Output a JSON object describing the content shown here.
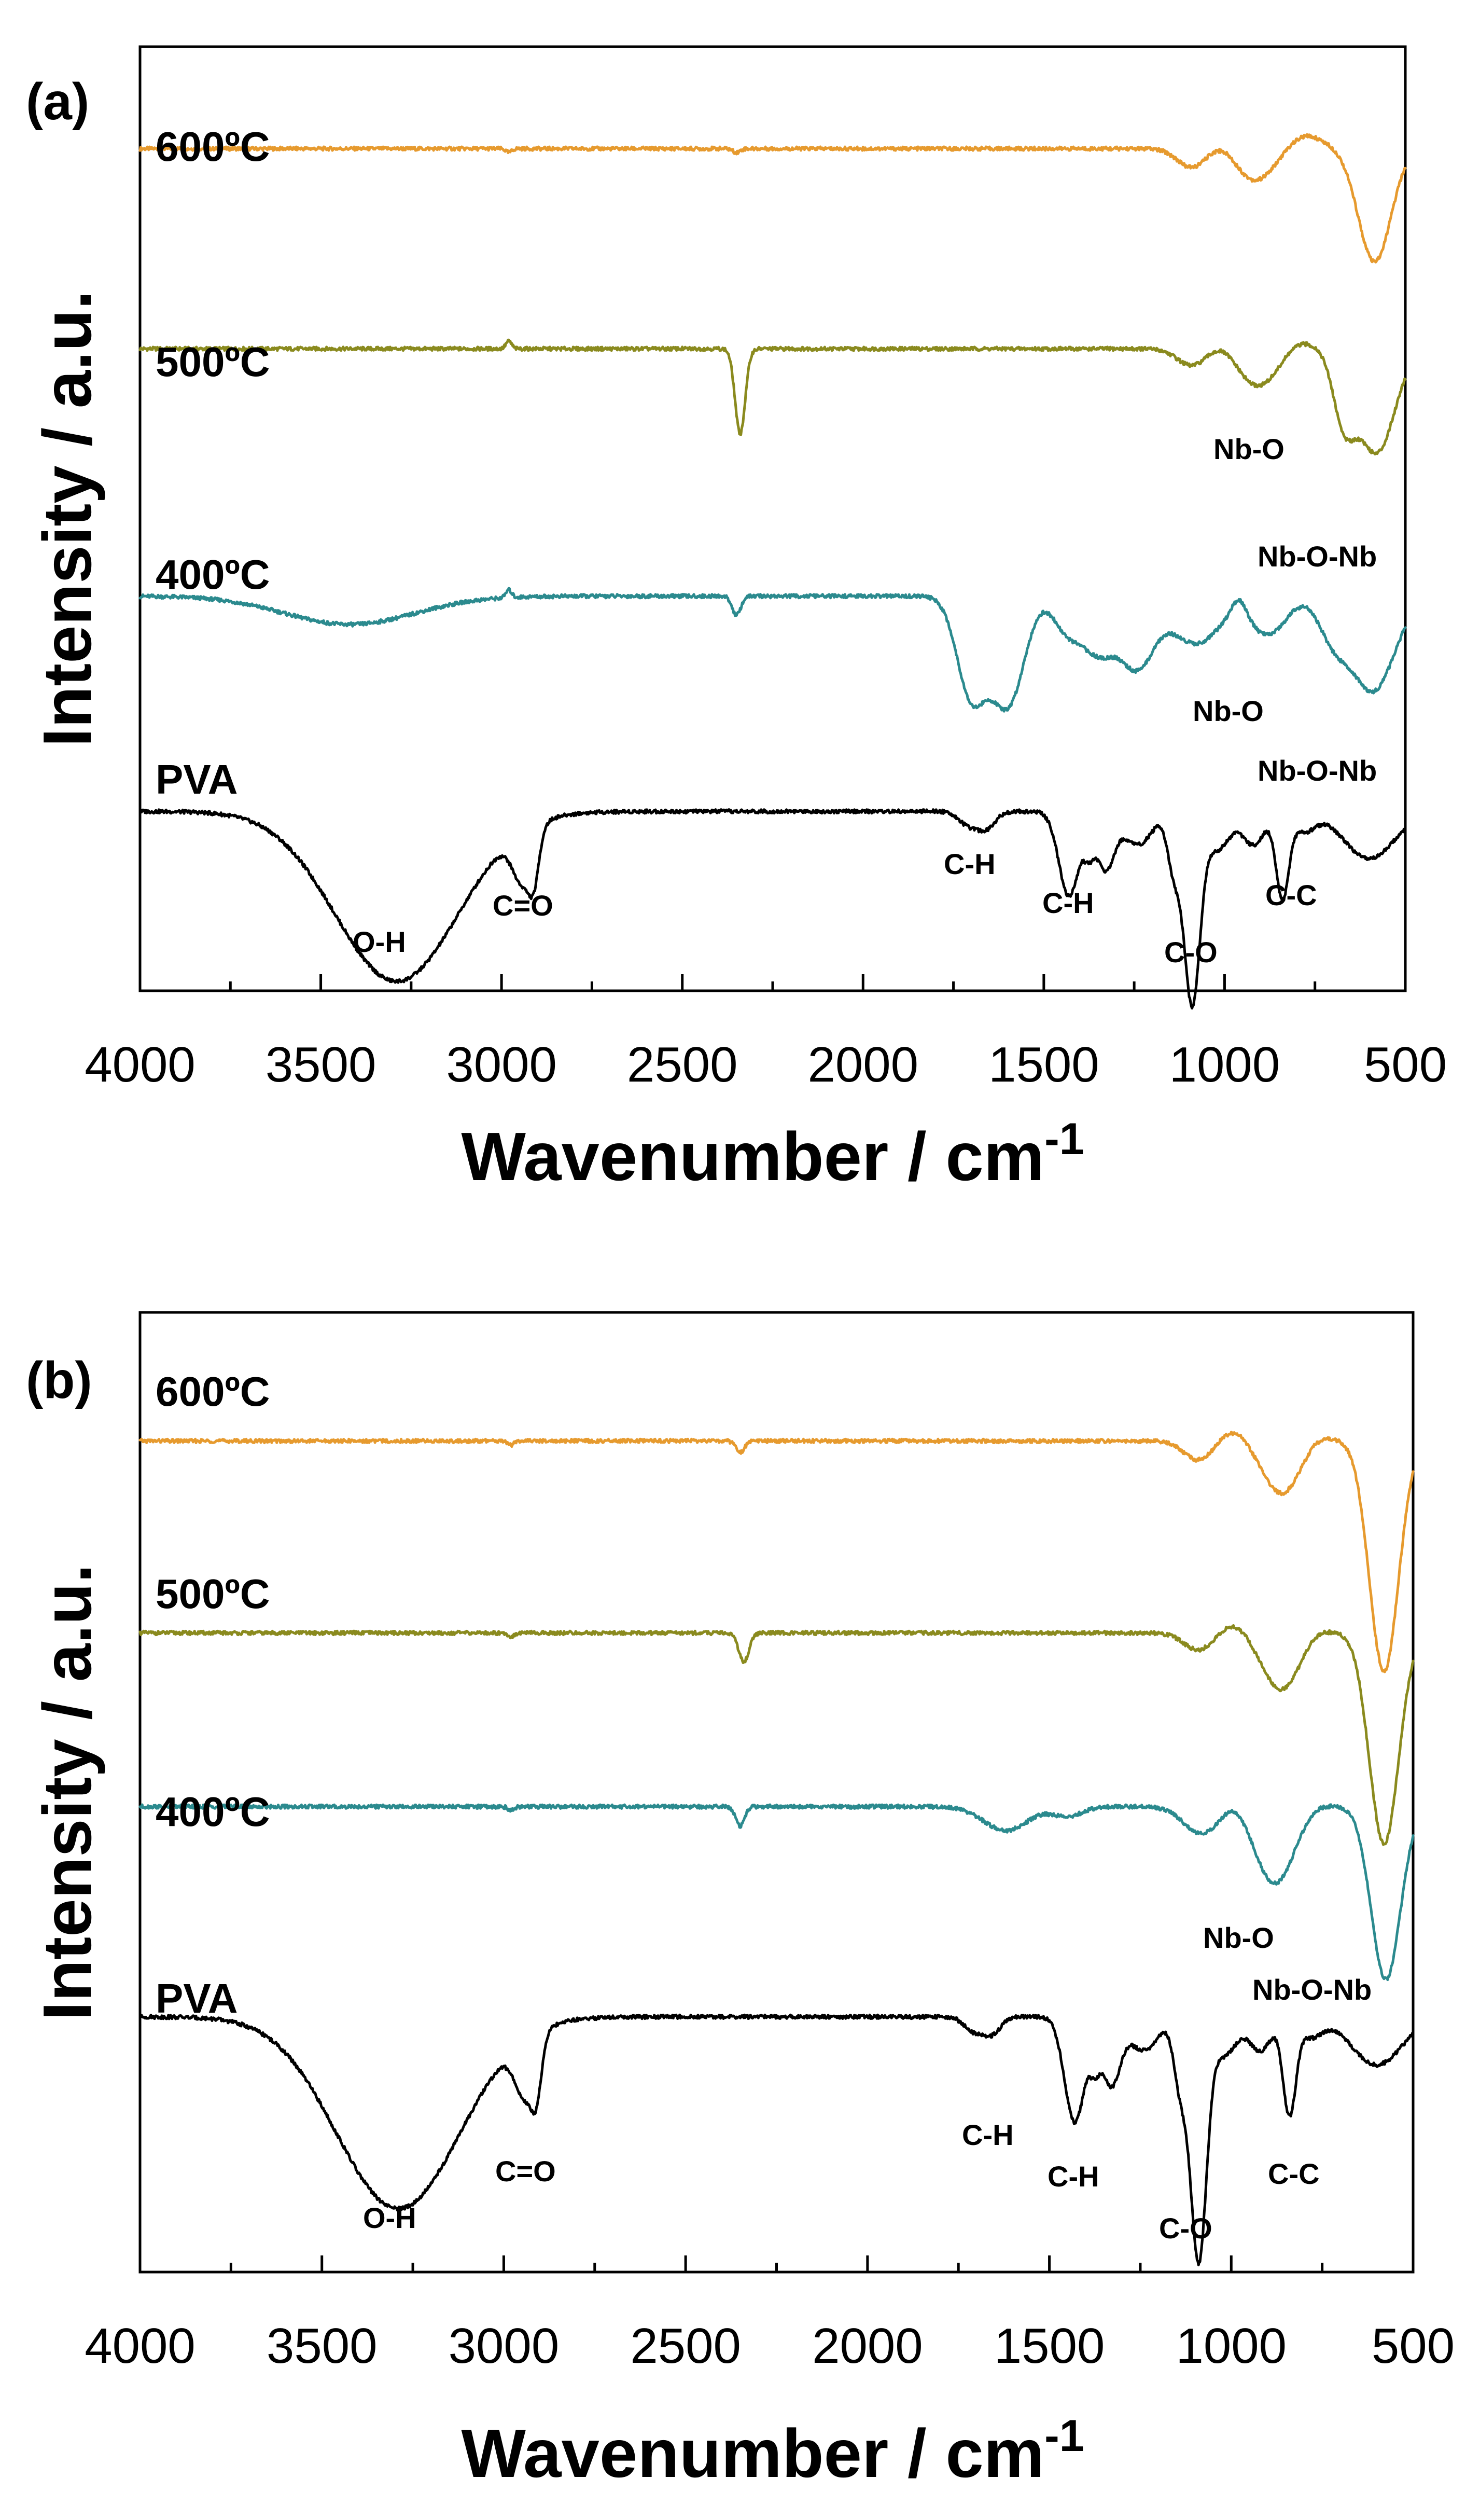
{
  "chart_data": [
    {
      "type": "line",
      "panel": "(a)",
      "xlabel": "Wavenumber / cm",
      "xlabel_sup": "-1",
      "ylabel": "Intensity / a.u.",
      "xlim": [
        4000,
        500
      ],
      "xticks": [
        4000,
        3500,
        3000,
        2500,
        2000,
        1500,
        1000,
        500
      ],
      "ylim": [
        0,
        1
      ],
      "series": [
        {
          "name": "600ºC",
          "color": "#e69a2e",
          "baseline": 0.892,
          "features": [
            [
              2980,
              8,
              0.004
            ],
            [
              2350,
              10,
              0.004
            ],
            [
              1090,
              40,
              0.02
            ],
            [
              1000,
              40,
              -0.012
            ],
            [
              920,
              60,
              0.035
            ],
            [
              780,
              50,
              -0.015
            ],
            [
              585,
              45,
              0.12
            ]
          ]
        },
        {
          "name": "500ºC",
          "color": "#8a8a1e",
          "baseline": 0.68,
          "features": [
            [
              2980,
              8,
              -0.008
            ],
            [
              2340,
              14,
              0.09
            ],
            [
              1090,
              40,
              0.018
            ],
            [
              1000,
              40,
              -0.01
            ],
            [
              910,
              60,
              0.04
            ],
            [
              800,
              40,
              -0.01
            ],
            [
              670,
              30,
              0.07
            ],
            [
              580,
              50,
              0.11
            ]
          ]
        },
        {
          "name": "400ºC",
          "color": "#2b8a8e",
          "baseline": 0.418,
          "features": [
            [
              3420,
              180,
              0.03
            ],
            [
              2980,
              8,
              -0.008
            ],
            [
              2350,
              12,
              0.02
            ],
            [
              1700,
              40,
              0.105
            ],
            [
              1600,
              45,
              0.115
            ],
            [
              1440,
              35,
              0.03
            ],
            [
              1350,
              50,
              0.06
            ],
            [
              1240,
              45,
              0.07
            ],
            [
              1080,
              70,
              0.05
            ],
            [
              960,
              20,
              -0.018
            ],
            [
              880,
              50,
              0.04
            ],
            [
              700,
              40,
              0.04
            ],
            [
              590,
              60,
              0.1
            ]
          ]
        },
        {
          "name": "PVA",
          "color": "#000000",
          "baseline": 0.19,
          "features": [
            [
              3290,
              170,
              0.18
            ],
            [
              2940,
              28,
              0.055
            ],
            [
              2910,
              14,
              0.04
            ],
            [
              1710,
              25,
              0.014
            ],
            [
              1660,
              25,
              0.018
            ],
            [
              1430,
              28,
              0.09
            ],
            [
              1375,
              14,
              0.03
            ],
            [
              1330,
              25,
              0.06
            ],
            [
              1240,
              40,
              0.035
            ],
            [
              1090,
              22,
              0.2
            ],
            [
              1140,
              18,
              0.06
            ],
            [
              1020,
              35,
              0.04
            ],
            [
              920,
              30,
              0.035
            ],
            [
              840,
              18,
              0.09
            ],
            [
              780,
              30,
              0.02
            ],
            [
              600,
              70,
              0.05
            ]
          ]
        }
      ],
      "series_labels": [
        "600ºC",
        "500ºC",
        "400ºC",
        "PVA"
      ],
      "annotations": [
        "Nb-O",
        "Nb-O-Nb",
        "Nb-O",
        "Nb-O-Nb",
        "O-H",
        "C=O",
        "C-H",
        "C-H",
        "C-O",
        "C-C"
      ]
    },
    {
      "type": "line",
      "panel": "(b)",
      "xlabel": "Wavenumber / cm",
      "xlabel_sup": "-1",
      "ylabel": "Intensity / a.u.",
      "xlim": [
        4000,
        500
      ],
      "xticks": [
        4000,
        3500,
        3000,
        2500,
        2000,
        1500,
        1000,
        500
      ],
      "ylim": [
        0,
        1
      ],
      "series": [
        {
          "name": "600ºC",
          "color": "#e69a2e",
          "baseline": 0.866,
          "features": [
            [
              2980,
              8,
              0.004
            ],
            [
              2350,
              12,
              0.012
            ],
            [
              1090,
              40,
              0.02
            ],
            [
              990,
              40,
              -0.012
            ],
            [
              860,
              55,
              0.055
            ],
            [
              770,
              40,
              -0.01
            ],
            [
              580,
              40,
              0.24
            ]
          ]
        },
        {
          "name": "500ºC",
          "color": "#8a8a1e",
          "baseline": 0.666,
          "features": [
            [
              2980,
              8,
              0.004
            ],
            [
              2340,
              14,
              0.03
            ],
            [
              1090,
              40,
              0.018
            ],
            [
              990,
              40,
              -0.01
            ],
            [
              860,
              55,
              0.06
            ],
            [
              780,
              40,
              -0.01
            ],
            [
              580,
              40,
              0.22
            ]
          ]
        },
        {
          "name": "400ºC",
          "color": "#2b8a8e",
          "baseline": 0.485,
          "features": [
            [
              2980,
              8,
              0.004
            ],
            [
              2350,
              12,
              0.02
            ],
            [
              1620,
              60,
              0.025
            ],
            [
              1450,
              40,
              0.01
            ],
            [
              1080,
              50,
              0.028
            ],
            [
              990,
              35,
              -0.01
            ],
            [
              880,
              55,
              0.08
            ],
            [
              780,
              40,
              -0.005
            ],
            [
              575,
              40,
              0.18
            ]
          ]
        },
        {
          "name": "PVA",
          "color": "#000000",
          "baseline": 0.266,
          "features": [
            [
              3290,
              170,
              0.2
            ],
            [
              2940,
              28,
              0.06
            ],
            [
              2910,
              14,
              0.045
            ],
            [
              1710,
              25,
              0.014
            ],
            [
              1660,
              25,
              0.018
            ],
            [
              1430,
              28,
              0.11
            ],
            [
              1375,
              14,
              0.035
            ],
            [
              1330,
              25,
              0.07
            ],
            [
              1240,
              40,
              0.035
            ],
            [
              1090,
              22,
              0.25
            ],
            [
              1140,
              18,
              0.07
            ],
            [
              1020,
              35,
              0.04
            ],
            [
              920,
              30,
              0.035
            ],
            [
              840,
              18,
              0.1
            ],
            [
              780,
              30,
              0.02
            ],
            [
              600,
              70,
              0.05
            ]
          ]
        }
      ],
      "series_labels": [
        "600ºC",
        "500ºC",
        "400ºC",
        "PVA"
      ],
      "annotations": [
        "Nb-O",
        "Nb-O-Nb",
        "O-H",
        "C=O",
        "C-H",
        "C-H",
        "C-O",
        "C-C"
      ]
    }
  ]
}
